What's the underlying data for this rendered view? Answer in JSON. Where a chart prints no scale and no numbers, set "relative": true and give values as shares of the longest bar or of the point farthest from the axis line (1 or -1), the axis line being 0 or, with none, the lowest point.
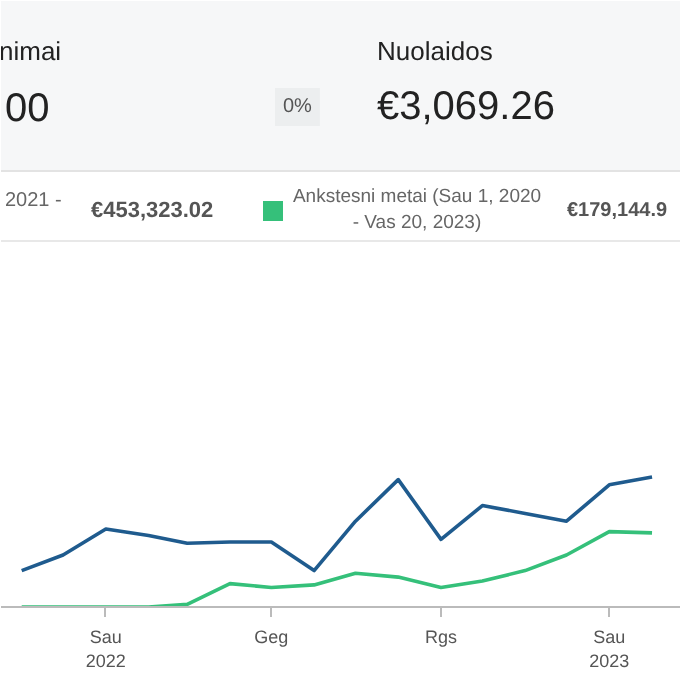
{
  "chart_data": {
    "type": "line",
    "relative": true,
    "legend": "top",
    "annotations": [
      "nimai",
      "00",
      "0%",
      "Nuolaidos",
      "€3,069.26",
      "2021 -",
      "€453,323.02",
      "€179,144.9"
    ],
    "x": [
      "2021-11",
      "2021-12",
      "2022-01",
      "2022-02",
      "2022-03",
      "2022-04",
      "2022-05",
      "2022-06",
      "2022-07",
      "2022-08",
      "2022-09",
      "2022-10",
      "2022-11",
      "2022-12",
      "2023-01",
      "2023-02"
    ],
    "xlim": [
      "2021-10-17",
      "2023-02-22"
    ],
    "xticks": [
      {
        "value": "2022-01-01",
        "label": "Sau\n2022"
      },
      {
        "value": "2022-05-01",
        "label": "Geg"
      },
      {
        "value": "2022-09-01",
        "label": "Rgs"
      },
      {
        "value": "2023-01-01",
        "label": "Sau\n2023"
      }
    ],
    "series": [
      {
        "color": "#1f5b8e",
        "values": [
          0.28,
          0.4,
          0.6,
          0.55,
          0.49,
          0.5,
          0.5,
          0.28,
          0.66,
          0.98,
          0.52,
          0.78,
          0.72,
          0.66,
          0.94,
          1.0
        ]
      },
      {
        "name": "Ankstesni metai (Sau 1, 2020 - Vas 20, 2023)",
        "color": "#35c07a",
        "values": [
          0,
          0,
          0,
          0,
          0.02,
          0.18,
          0.15,
          0.17,
          0.26,
          0.23,
          0.15,
          0.2,
          0.28,
          0.4,
          0.58,
          0.57
        ]
      }
    ]
  }
}
